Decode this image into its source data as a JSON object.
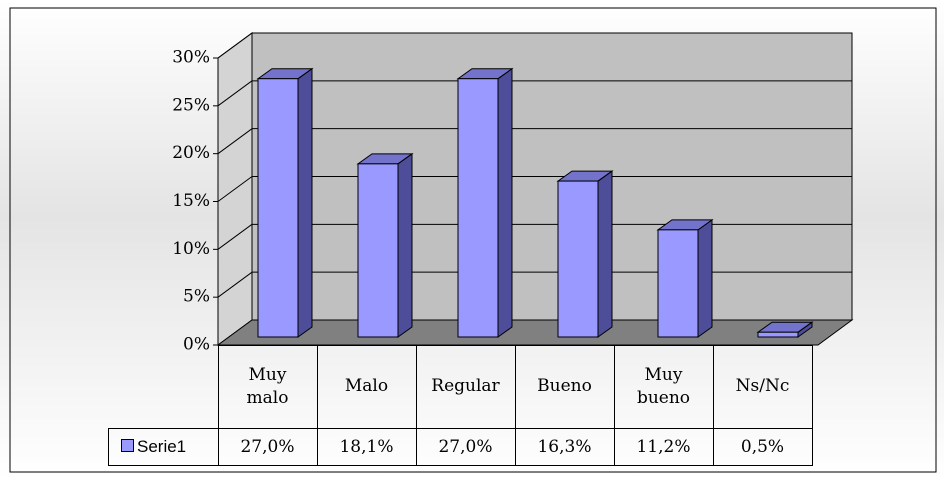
{
  "chart_data": {
    "type": "bar3d",
    "categories": [
      "Muy malo",
      "Malo",
      "Regular",
      "Bueno",
      "Muy bueno",
      "Ns/Nc"
    ],
    "series": [
      {
        "name": "Serie1",
        "color": "#9999ff",
        "values": [
          27.0,
          18.1,
          27.0,
          16.3,
          11.2,
          0.5
        ],
        "value_labels": [
          "27,0%",
          "18,1%",
          "27,0%",
          "16,3%",
          "11,2%",
          "0,5%"
        ]
      }
    ],
    "ylim": [
      0,
      30
    ],
    "yticks": [
      {
        "value": 0,
        "label": "0%"
      },
      {
        "value": 5,
        "label": "5%"
      },
      {
        "value": 10,
        "label": "10%"
      },
      {
        "value": 15,
        "label": "15%"
      },
      {
        "value": 20,
        "label": "20%"
      },
      {
        "value": 25,
        "label": "25%"
      },
      {
        "value": 30,
        "label": "30%"
      }
    ],
    "grid": true,
    "legend": "data-table"
  }
}
